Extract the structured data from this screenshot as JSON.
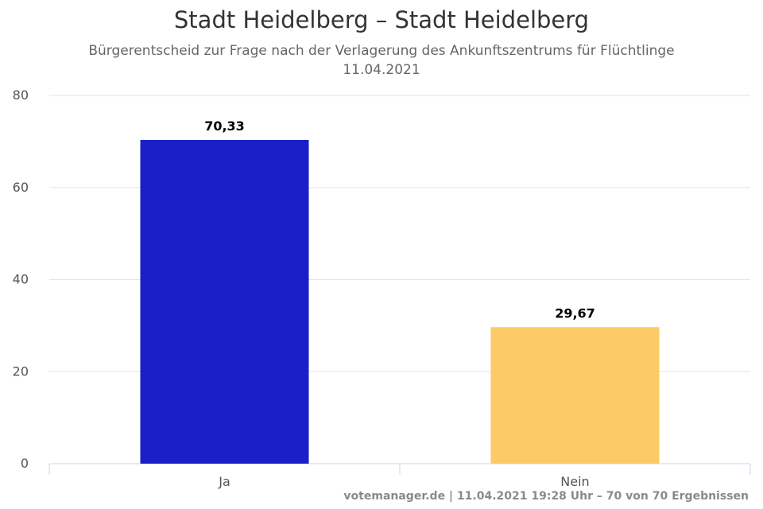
{
  "chart_data": {
    "type": "bar",
    "title": "Stadt Heidelberg – Stadt Heidelberg",
    "subtitle": "Bürgerentscheid zur Frage nach der Verlagerung des Ankunftszentrums für Flüchtlinge",
    "subtitle2": "11.04.2021",
    "categories": [
      "Ja",
      "Nein"
    ],
    "values": [
      70.33,
      29.67
    ],
    "value_labels": [
      "70,33",
      "29,67"
    ],
    "colors": [
      "#1a1fc8",
      "#fcca66"
    ],
    "ylim": [
      0,
      80
    ],
    "yticks": [
      0,
      20,
      40,
      60,
      80
    ],
    "grid": true
  },
  "credits": "votemanager.de | 11.04.2021 19:28 Uhr – 70 von 70 Ergebnissen"
}
